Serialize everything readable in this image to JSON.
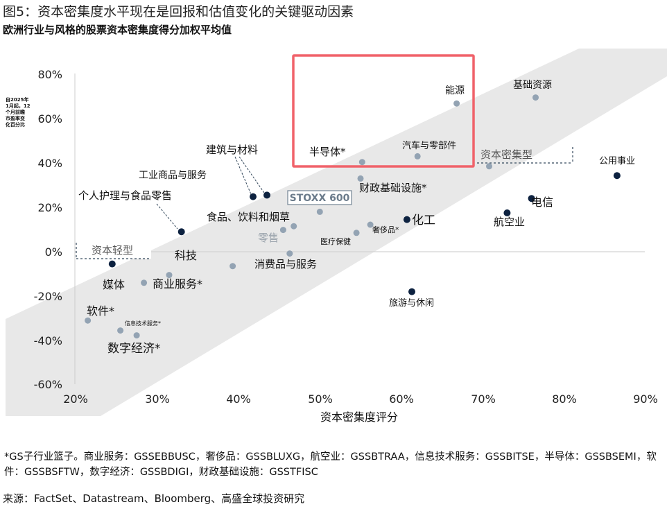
{
  "figure": {
    "title": "图5：资本密集度水平现在是回报和估值变化的关键驱动因素",
    "subtitle": "欧洲行业与风格的股票资本密集度得分加权平均值",
    "footnote": "*GS子行业篮子。商业服务：GSSEBBUSC，奢侈品：GSSBLUXG，航空业：GSSBTRAA，信息技术服务：GSSBITSE，半导体：GSSBSEMI，软件：GSSBSFTW，数字经济：GSSBDIGI，财政基础设施：GSSTFISC",
    "source": "来源：FactSet、Datastream、Bloomberg、高盛全球投资研究"
  },
  "chart_data": {
    "type": "scatter",
    "xlabel": "资本密集度评分",
    "ylabel": [
      "自2025年",
      "1月起，12",
      "个月前瞻",
      "市盈率变",
      "化百分比"
    ],
    "xlim": [
      20,
      90
    ],
    "ylim": [
      -60,
      80
    ],
    "xticks": [
      20,
      30,
      40,
      50,
      60,
      70,
      80,
      90
    ],
    "xtick_labels": [
      "20%",
      "30%",
      "40%",
      "50%",
      "60%",
      "70%",
      "80%",
      "90%"
    ],
    "yticks": [
      80,
      60,
      40,
      20,
      0,
      -20,
      -40,
      -60
    ],
    "ytick_labels": [
      "80%",
      "60%",
      "40%",
      "20%",
      "0%",
      "-20%",
      "-40%",
      "-60%"
    ],
    "grid": false,
    "colors": {
      "highlight": "#0d2240",
      "point": "#93a3b3",
      "band": "#e8e8e8",
      "box": "#f0626a"
    },
    "band_labels": {
      "capital_light": "资本轻型",
      "capital_heavy": "资本密集型",
      "benchmark": "STOXX 600",
      "retail": "零售"
    },
    "points": [
      {
        "name": "能源",
        "x": 66.8,
        "y": 66.8,
        "highlight": false
      },
      {
        "name": "基础资源",
        "x": 76.5,
        "y": 69.5,
        "highlight": false
      },
      {
        "name": "汽车与零部件",
        "x": 62.0,
        "y": 43.0,
        "highlight": false
      },
      {
        "name": "半导体*",
        "x": 55.2,
        "y": 40.4,
        "highlight": false
      },
      {
        "name": "资本密集型",
        "x": 70.8,
        "y": 38.5,
        "highlight": false
      },
      {
        "name": "公用事业",
        "x": 86.5,
        "y": 34.3,
        "highlight": true
      },
      {
        "name": "财政基础设施*",
        "x": 55.0,
        "y": 33.0,
        "highlight": false
      },
      {
        "name": "建筑与材料",
        "x": 43.5,
        "y": 25.5,
        "highlight": true
      },
      {
        "name": "工业商品与服务",
        "x": 41.8,
        "y": 24.8,
        "highlight": true
      },
      {
        "name": "电信",
        "x": 76.0,
        "y": 24.0,
        "highlight": true
      },
      {
        "name": "STOXX 600",
        "x": 50.0,
        "y": 18.0,
        "highlight": false
      },
      {
        "name": "航空业",
        "x": 73.0,
        "y": 17.5,
        "highlight": true
      },
      {
        "name": "化工",
        "x": 60.7,
        "y": 14.5,
        "highlight": true
      },
      {
        "name": "奢侈品*",
        "x": 56.2,
        "y": 12.2,
        "highlight": false
      },
      {
        "name": "食品、饮料和烟草",
        "x": 46.8,
        "y": 11.5,
        "highlight": false
      },
      {
        "name": "零售",
        "x": 45.5,
        "y": 9.8,
        "highlight": false
      },
      {
        "name": "个人护理与食品零售",
        "x": 33.0,
        "y": 9.0,
        "highlight": true
      },
      {
        "name": "医疗保健",
        "x": 54.5,
        "y": 8.5,
        "highlight": false
      },
      {
        "name": "消费品与服务",
        "x": 46.3,
        "y": -0.8,
        "highlight": false
      },
      {
        "name": "资本轻型",
        "x": 24.5,
        "y": -5.5,
        "highlight": true
      },
      {
        "name": "科技",
        "x": 39.3,
        "y": -6.5,
        "highlight": false
      },
      {
        "name": "商业服务*",
        "x": 31.5,
        "y": -10.5,
        "highlight": false
      },
      {
        "name": "媒体",
        "x": 28.4,
        "y": -14.0,
        "highlight": false
      },
      {
        "name": "旅游与休闲",
        "x": 61.3,
        "y": -18.0,
        "highlight": true
      },
      {
        "name": "软件*",
        "x": 21.5,
        "y": -31.0,
        "highlight": false
      },
      {
        "name": "信息技术服务*",
        "x": 25.5,
        "y": -35.5,
        "highlight": false
      },
      {
        "name": "数字经济*",
        "x": 27.5,
        "y": -37.7,
        "highlight": false
      }
    ]
  }
}
